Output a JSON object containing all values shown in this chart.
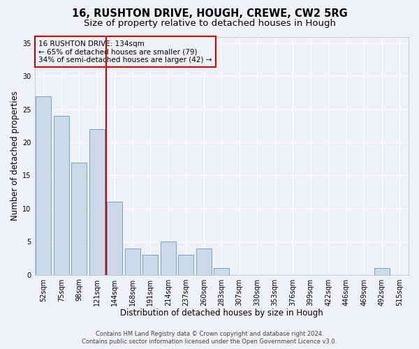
{
  "title1": "16, RUSHTON DRIVE, HOUGH, CREWE, CW2 5RG",
  "title2": "Size of property relative to detached houses in Hough",
  "xlabel": "Distribution of detached houses by size in Hough",
  "ylabel": "Number of detached properties",
  "categories": [
    "52sqm",
    "75sqm",
    "98sqm",
    "121sqm",
    "144sqm",
    "168sqm",
    "191sqm",
    "214sqm",
    "237sqm",
    "260sqm",
    "283sqm",
    "307sqm",
    "330sqm",
    "353sqm",
    "376sqm",
    "399sqm",
    "422sqm",
    "446sqm",
    "469sqm",
    "492sqm",
    "515sqm"
  ],
  "values": [
    27,
    24,
    17,
    22,
    11,
    4,
    3,
    5,
    3,
    4,
    1,
    0,
    0,
    0,
    0,
    0,
    0,
    0,
    0,
    1,
    0
  ],
  "bar_color": "#ccd9e8",
  "bar_edge_color": "#6699bb",
  "vline_color": "#cc0000",
  "vline_x_index": 3,
  "annotation_box_text": "16 RUSHTON DRIVE: 134sqm\n← 65% of detached houses are smaller (79)\n34% of semi-detached houses are larger (42) →",
  "annotation_box_edge_color": "#cc0000",
  "ylim": [
    0,
    36
  ],
  "yticks": [
    0,
    5,
    10,
    15,
    20,
    25,
    30,
    35
  ],
  "footer_line1": "Contains HM Land Registry data © Crown copyright and database right 2024.",
  "footer_line2": "Contains public sector information licensed under the Open Government Licence v3.0.",
  "background_color": "#eef2f7",
  "grid_color": "#ffffff",
  "title1_fontsize": 10.5,
  "title2_fontsize": 9.5,
  "tick_fontsize": 7,
  "axis_label_fontsize": 8.5,
  "footer_fontsize": 6,
  "annotation_fontsize": 7.5
}
